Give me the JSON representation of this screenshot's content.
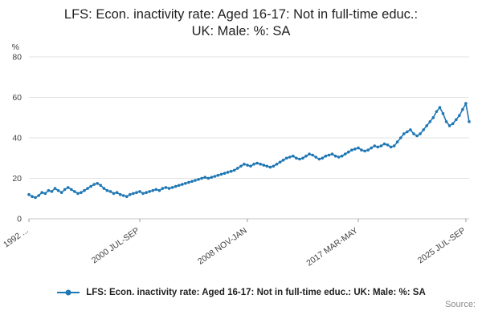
{
  "title": "LFS: Econ. inactivity rate: Aged 16-17: Not in full-time educ.: UK: Male: %: SA",
  "source_label": "Source:",
  "legend": {
    "label": "LFS: Econ. inactivity rate: Aged 16-17: Not in full-time educ.: UK: Male: %: SA"
  },
  "chart_data": {
    "type": "line",
    "title": "LFS: Econ. inactivity rate: Aged 16-17: Not in full-time educ.: UK: Male: %: SA",
    "ylabel": "%",
    "xlabel": "",
    "ylim": [
      0,
      80
    ],
    "yticks": [
      0,
      20,
      40,
      60,
      80
    ],
    "grid": true,
    "legend_position": "bottom",
    "marker": "circle",
    "line_color": "#1f77b4",
    "xticklabels": [
      "1992 ...",
      "2000 JUL-SEP",
      "2008 NOV-JAN",
      "2017 MAR-MAY",
      "2025 JUL-SEP"
    ],
    "xtick_indices": [
      0,
      34,
      67,
      101,
      134
    ],
    "series": [
      {
        "name": "LFS: Econ. inactivity rate: Aged 16-17: Not in full-time educ.: UK: Male: %: SA",
        "values": [
          12,
          11,
          10.5,
          11.5,
          13,
          12.5,
          14,
          13.5,
          15,
          14,
          13,
          14.5,
          15.5,
          14.5,
          13.5,
          12.5,
          13,
          14,
          15,
          16,
          17,
          17.5,
          16.5,
          15,
          14,
          13.5,
          12.5,
          13,
          12,
          11.5,
          11,
          12,
          12.5,
          13,
          13.5,
          12.5,
          13,
          13.5,
          14,
          14.5,
          14,
          15,
          15.5,
          15,
          15.5,
          16,
          16.5,
          17,
          17.5,
          18,
          18.5,
          19,
          19.5,
          20,
          20.5,
          20,
          20.5,
          21,
          21.5,
          22,
          22.5,
          23,
          23.5,
          24,
          25,
          26,
          27,
          26.5,
          26,
          27,
          27.5,
          27,
          26.5,
          26,
          25.5,
          26,
          27,
          28,
          29,
          30,
          30.5,
          31,
          30,
          29.5,
          30,
          31,
          32,
          31.5,
          30.5,
          29.5,
          30,
          31,
          31.5,
          32,
          31,
          30.5,
          31,
          32,
          33,
          34,
          34.5,
          35,
          34,
          33.5,
          34,
          35,
          36,
          35.5,
          36,
          37,
          36.5,
          35.5,
          36,
          38,
          40,
          42,
          43,
          44,
          42,
          41,
          42,
          44,
          46,
          48,
          50,
          53,
          55,
          52,
          48,
          46,
          47,
          49,
          51,
          54,
          57,
          48
        ]
      }
    ]
  }
}
